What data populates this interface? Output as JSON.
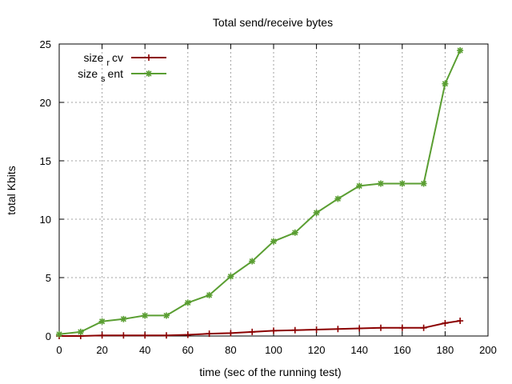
{
  "chart_data": {
    "type": "line",
    "title": "Total send/receive bytes",
    "xlabel": "time (sec of the running test)",
    "ylabel": "total Kbits",
    "xlim": [
      0,
      200
    ],
    "ylim": [
      0,
      25
    ],
    "xticks": [
      "0",
      "20",
      "40",
      "60",
      "80",
      "100",
      "120",
      "140",
      "160",
      "180",
      "200"
    ],
    "yticks": [
      "0",
      "5",
      "10",
      "15",
      "20",
      "25"
    ],
    "grid": true,
    "legend_position": "top-left",
    "series": [
      {
        "name_main": "size",
        "name_sub": "r",
        "name_rest": "cv",
        "color": "#8b0000",
        "marker": "plus",
        "x": [
          0,
          10,
          20,
          30,
          40,
          50,
          60,
          70,
          80,
          90,
          100,
          110,
          120,
          130,
          140,
          150,
          160,
          170,
          180,
          187
        ],
        "y": [
          0.0,
          0.0,
          0.05,
          0.05,
          0.05,
          0.05,
          0.1,
          0.2,
          0.25,
          0.35,
          0.45,
          0.5,
          0.55,
          0.6,
          0.65,
          0.7,
          0.7,
          0.7,
          1.1,
          1.3
        ]
      },
      {
        "name_main": "size",
        "name_sub": "s",
        "name_rest": "ent",
        "color": "#5a9e32",
        "marker": "star",
        "x": [
          0,
          10,
          20,
          30,
          40,
          50,
          60,
          70,
          80,
          90,
          100,
          110,
          120,
          130,
          140,
          150,
          160,
          170,
          180,
          187
        ],
        "y": [
          0.15,
          0.35,
          1.25,
          1.45,
          1.75,
          1.75,
          2.85,
          3.5,
          5.1,
          6.4,
          8.1,
          8.85,
          10.55,
          11.75,
          12.85,
          13.05,
          13.05,
          13.05,
          21.6,
          24.45
        ]
      }
    ]
  }
}
